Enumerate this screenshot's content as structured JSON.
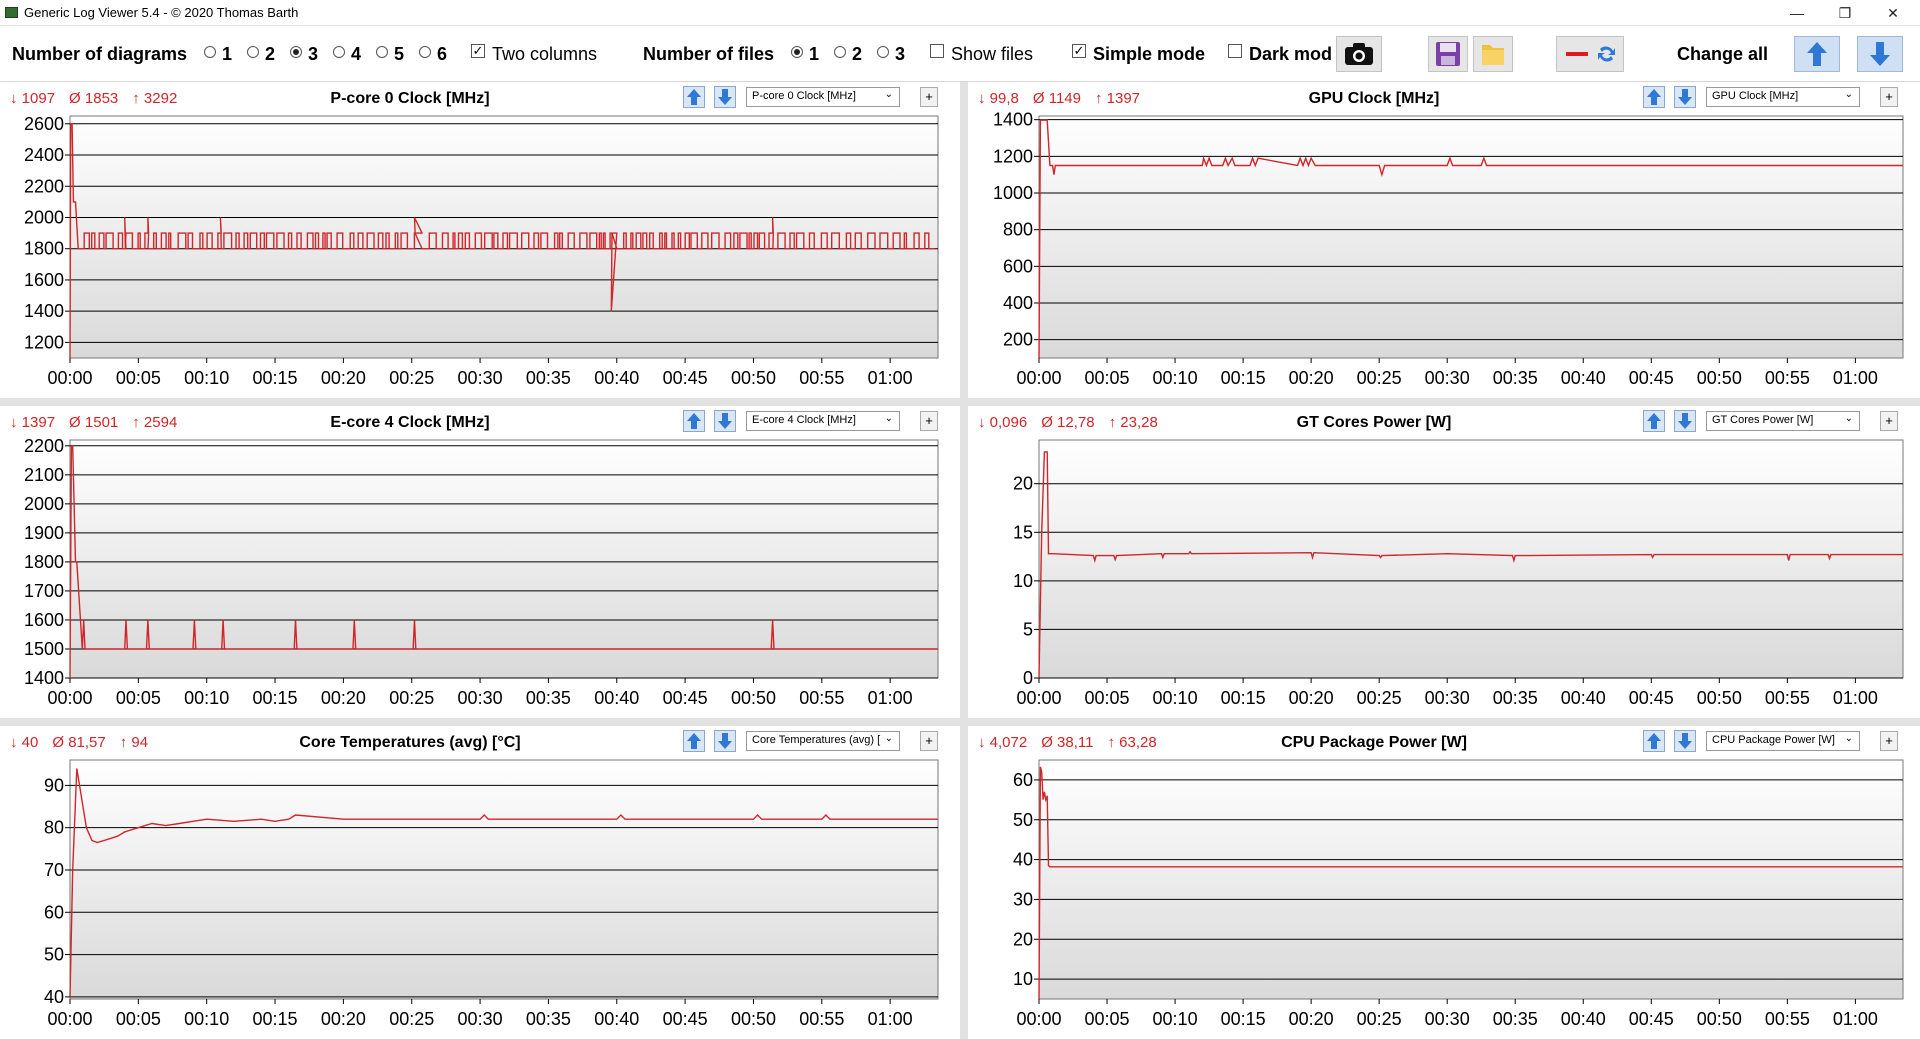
{
  "window": {
    "title": "Generic Log Viewer 5.4 - © 2020 Thomas Barth",
    "minimize_glyph": "—",
    "restore_glyph": "❐",
    "close_glyph": "✕"
  },
  "toolbar": {
    "diagrams_label": "Number of diagrams",
    "diagram_options": [
      "1",
      "2",
      "3",
      "4",
      "5",
      "6"
    ],
    "diagrams_selected": "3",
    "two_columns_label": "Two columns",
    "two_columns_checked": true,
    "files_label": "Number of files",
    "file_options": [
      "1",
      "2",
      "3"
    ],
    "files_selected": "1",
    "show_files_label": "Show files",
    "show_files_checked": false,
    "simple_mode_label": "Simple mode",
    "simple_mode_checked": true,
    "dark_mode_label": "Dark mod",
    "dark_mode_checked": false,
    "change_all_label": "Change all",
    "icons": [
      "camera-icon",
      "save-icon",
      "folder-icon",
      "line-swap-icon",
      "arrow-up-icon",
      "arrow-down-icon"
    ]
  },
  "colors": {
    "line": "#d0262a",
    "stat": "#d0262a",
    "grid": "#000000"
  },
  "x_ticks": [
    "00:00",
    "00:05",
    "00:10",
    "00:15",
    "00:20",
    "00:25",
    "00:30",
    "00:35",
    "00:40",
    "00:45",
    "00:50",
    "00:55",
    "01:00"
  ],
  "panels": [
    {
      "id": "p-core-0-clock",
      "title": "P-core 0 Clock [MHz]",
      "min": "1097",
      "avg": "1853",
      "max": "3292",
      "dropdown": "P-core 0 Clock [MHz]",
      "chart_data": {
        "type": "line",
        "title": "P-core 0 Clock [MHz]",
        "y_ticks": [
          "1200",
          "1400",
          "1600",
          "1800",
          "2000",
          "2200",
          "2400",
          "2600"
        ],
        "ylim": [
          1100,
          2650
        ],
        "xlim_minutes": [
          0,
          63.5
        ],
        "series": [
          {
            "x_minutes": [
              0,
              0.05,
              0.15,
              0.25,
              0.4,
              0.6,
              0.7,
              1,
              2,
              3,
              3.9,
              4,
              4.1,
              5,
              5.6,
              5.7,
              5.8,
              7,
              9,
              10.9,
              11,
              11.1,
              12,
              15,
              20,
              25.1,
              25.2,
              25.3,
              27,
              30,
              35,
              39.5,
              39.6,
              39.7,
              40,
              45,
              50,
              51.3,
              51.4,
              51.5,
              55,
              60,
              63
            ],
            "y": [
              1100,
              2600,
              2600,
              2100,
              2100,
              1800,
              1900,
              1800,
              1900,
              1800,
              1900,
              2000,
              1800,
              1900,
              1800,
              2000,
              1800,
              1900,
              1800,
              1900,
              2000,
              1800,
              1900,
              1800,
              1900,
              1800,
              2000,
              1800,
              1900,
              1800,
              1900,
              1800,
              1400,
              1800,
              1900,
              1800,
              1900,
              1800,
              2000,
              1800,
              1900,
              1800,
              1900
            ]
          }
        ],
        "pattern": "oscillates 1800–1900 MHz",
        "grid": true
      }
    },
    {
      "id": "gpu-clock",
      "title": "GPU Clock [MHz]",
      "min": "99,8",
      "avg": "1149",
      "max": "1397",
      "dropdown": "GPU Clock [MHz]",
      "chart_data": {
        "type": "line",
        "title": "GPU Clock [MHz]",
        "y_ticks": [
          "200",
          "400",
          "600",
          "800",
          "1000",
          "1200",
          "1400"
        ],
        "ylim": [
          100,
          1420
        ],
        "xlim_minutes": [
          0,
          63.5
        ],
        "series": [
          {
            "x_minutes": [
              0,
              0.1,
              0.3,
              0.6,
              0.8,
              1.0,
              1.1,
              1.2,
              12,
              12.1,
              12.3,
              12.5,
              12.7,
              13.5,
              13.7,
              13.9,
              14.2,
              14.4,
              15.5,
              15.7,
              15.9,
              16.1,
              19,
              19.2,
              19.4,
              19.6,
              19.8,
              20,
              20.3,
              25,
              25.2,
              25.4,
              30,
              30.2,
              30.4,
              32.5,
              32.7,
              32.9,
              63.5
            ],
            "y": [
              100,
              1397,
              1397,
              1397,
              1150,
              1150,
              1100,
              1150,
              1150,
              1190,
              1150,
              1190,
              1150,
              1150,
              1190,
              1150,
              1190,
              1150,
              1150,
              1190,
              1150,
              1190,
              1150,
              1190,
              1150,
              1190,
              1150,
              1190,
              1150,
              1150,
              1100,
              1150,
              1150,
              1190,
              1150,
              1150,
              1190,
              1150,
              1150
            ]
          }
        ],
        "grid": true
      }
    },
    {
      "id": "e-core-4-clock",
      "title": "E-core 4 Clock [MHz]",
      "min": "1397",
      "avg": "1501",
      "max": "2594",
      "dropdown": "E-core 4 Clock [MHz]",
      "chart_data": {
        "type": "line",
        "title": "E-core 4 Clock [MHz]",
        "y_ticks": [
          "1400",
          "1500",
          "1600",
          "1700",
          "1800",
          "1900",
          "2000",
          "2100",
          "2200"
        ],
        "ylim": [
          1400,
          2220
        ],
        "xlim_minutes": [
          0,
          63.5
        ],
        "series": [
          {
            "x_minutes": [
              0,
              0.1,
              0.2,
              0.4,
              0.5,
              0.9,
              1.0,
              1.1,
              4.0,
              4.1,
              4.2,
              5.6,
              5.7,
              5.8,
              9.0,
              9.1,
              9.2,
              11.1,
              11.2,
              11.3,
              16.4,
              16.5,
              16.6,
              20.7,
              20.8,
              20.9,
              25.1,
              25.2,
              25.3,
              51.3,
              51.4,
              51.5,
              63.5
            ],
            "y": [
              1400,
              2200,
              2200,
              1800,
              1800,
              1500,
              1600,
              1500,
              1500,
              1600,
              1500,
              1500,
              1600,
              1500,
              1500,
              1600,
              1500,
              1500,
              1600,
              1500,
              1500,
              1600,
              1500,
              1500,
              1600,
              1500,
              1500,
              1600,
              1500,
              1500,
              1600,
              1500,
              1500
            ]
          }
        ],
        "grid": true
      }
    },
    {
      "id": "gt-cores-power",
      "title": "GT Cores Power [W]",
      "min": "0,096",
      "avg": "12,78",
      "max": "23,28",
      "dropdown": "GT Cores Power [W]",
      "chart_data": {
        "type": "line",
        "title": "GT Cores Power [W]",
        "y_ticks": [
          "0",
          "5",
          "10",
          "15",
          "20"
        ],
        "ylim": [
          0,
          24.5
        ],
        "xlim_minutes": [
          0,
          63.5
        ],
        "series": [
          {
            "x_minutes": [
              0,
              0.2,
              0.4,
              0.6,
              0.7,
              1.0,
              4,
              4.1,
              4.2,
              5.5,
              5.6,
              5.7,
              9,
              9.1,
              9.2,
              11,
              11.1,
              11.2,
              20,
              20.1,
              20.2,
              25,
              25.1,
              25.2,
              30,
              34.8,
              34.9,
              35,
              45,
              45.1,
              45.2,
              55,
              55.1,
              55.2,
              58,
              58.1,
              58.2,
              63.5
            ],
            "y": [
              0.1,
              15,
              23.28,
              23.28,
              12.8,
              12.8,
              12.6,
              12.1,
              12.6,
              12.6,
              12.2,
              12.6,
              12.8,
              12.4,
              12.8,
              12.8,
              13,
              12.8,
              12.9,
              12.4,
              12.9,
              12.6,
              12.4,
              12.6,
              12.8,
              12.6,
              12.1,
              12.6,
              12.7,
              12.4,
              12.7,
              12.7,
              12.1,
              12.7,
              12.7,
              12.3,
              12.7,
              12.7
            ]
          }
        ],
        "grid": true
      }
    },
    {
      "id": "core-temperatures-avg",
      "title": "Core Temperatures (avg) [°C]",
      "min": "40",
      "avg": "81,57",
      "max": "94",
      "dropdown": "Core Temperatures (avg) [",
      "chart_data": {
        "type": "line",
        "title": "Core Temperatures (avg) [°C]",
        "y_ticks": [
          "40",
          "50",
          "60",
          "70",
          "80",
          "90"
        ],
        "ylim": [
          39.5,
          96
        ],
        "xlim_minutes": [
          0,
          63.5
        ],
        "series": [
          {
            "x_minutes": [
              0,
              0.2,
              0.5,
              0.8,
              1.2,
              1.6,
              2.0,
              2.5,
              3.0,
              3.5,
              4.0,
              5.0,
              6.0,
              7.0,
              8.0,
              9.0,
              10.0,
              12.0,
              14.0,
              15.0,
              16.0,
              16.5,
              20.0,
              25.0,
              28.0,
              30.0,
              30.3,
              30.6,
              35.0,
              40.0,
              40.3,
              40.6,
              45.0,
              50.0,
              50.3,
              50.6,
              55.0,
              55.3,
              55.6,
              60.0,
              63.5
            ],
            "y": [
              40,
              70,
              94,
              88,
              80,
              77,
              76.5,
              77,
              77.5,
              78,
              79,
              80,
              81,
              80.5,
              81,
              81.5,
              82,
              81.5,
              82,
              81.5,
              82,
              83,
              82,
              82,
              82,
              82,
              83,
              82,
              82,
              82,
              83,
              82,
              82,
              82,
              83,
              82,
              82,
              83,
              82,
              82,
              82
            ]
          }
        ],
        "grid": true
      }
    },
    {
      "id": "cpu-package-power",
      "title": "CPU Package Power [W]",
      "min": "4,072",
      "avg": "38,11",
      "max": "63,28",
      "dropdown": "CPU Package Power [W]",
      "chart_data": {
        "type": "line",
        "title": "CPU Package Power [W]",
        "y_ticks": [
          "10",
          "20",
          "30",
          "40",
          "50",
          "60"
        ],
        "ylim": [
          5,
          65
        ],
        "xlim_minutes": [
          0,
          63.5
        ],
        "series": [
          {
            "x_minutes": [
              0,
              0.1,
              0.2,
              0.3,
              0.4,
              0.5,
              0.6,
              0.7,
              0.8,
              63.5
            ],
            "y": [
              4.1,
              63.28,
              62,
              55,
              57,
              55,
              56,
              38.5,
              38.2,
              38.2
            ]
          }
        ],
        "grid": true
      }
    }
  ]
}
